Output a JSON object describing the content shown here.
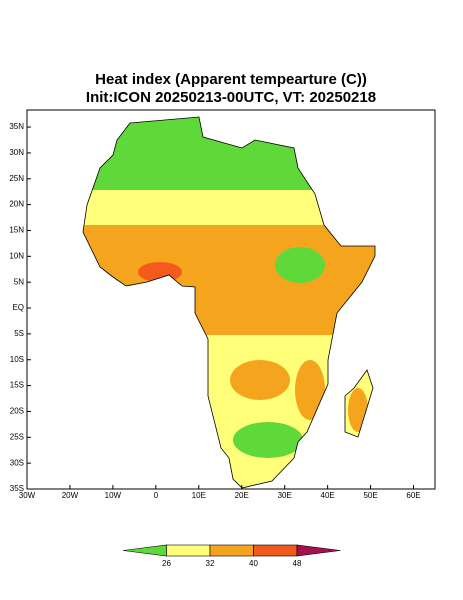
{
  "title": [
    "Heat index (Apparent tempearture (C))",
    "Init:ICON 20250213-00UTC, VT: 20250218"
  ],
  "map": {
    "lon_range": [
      -30,
      65
    ],
    "lat_range": [
      -35,
      38.3
    ],
    "lat_ticks": [
      {
        "value": 35,
        "label": "35N"
      },
      {
        "value": 30,
        "label": "30N"
      },
      {
        "value": 25,
        "label": "25N"
      },
      {
        "value": 20,
        "label": "20N"
      },
      {
        "value": 15,
        "label": "15N"
      },
      {
        "value": 10,
        "label": "10N"
      },
      {
        "value": 5,
        "label": "5N"
      },
      {
        "value": 0,
        "label": "EQ"
      },
      {
        "value": -5,
        "label": "5S"
      },
      {
        "value": -10,
        "label": "10S"
      },
      {
        "value": -15,
        "label": "15S"
      },
      {
        "value": -20,
        "label": "20S"
      },
      {
        "value": -25,
        "label": "25S"
      },
      {
        "value": -30,
        "label": "30S"
      },
      {
        "value": -35,
        "label": "35S"
      }
    ],
    "lon_ticks": [
      {
        "value": -30,
        "label": "30W"
      },
      {
        "value": -20,
        "label": "20W"
      },
      {
        "value": -10,
        "label": "10W"
      },
      0,
      {
        "value": 10,
        "label": "10E"
      },
      {
        "value": 20,
        "label": "20E"
      },
      {
        "value": 30,
        "label": "30E"
      },
      {
        "value": 40,
        "label": "40E"
      },
      {
        "value": 50,
        "label": "50E"
      },
      {
        "value": 60,
        "label": "60E"
      }
    ]
  },
  "colorbar": {
    "levels": [
      26,
      32,
      40,
      48
    ],
    "colors": [
      "#5fd83a",
      "#ffff7a",
      "#f5a41e",
      "#f45a1c",
      "#a3124f"
    ]
  }
}
